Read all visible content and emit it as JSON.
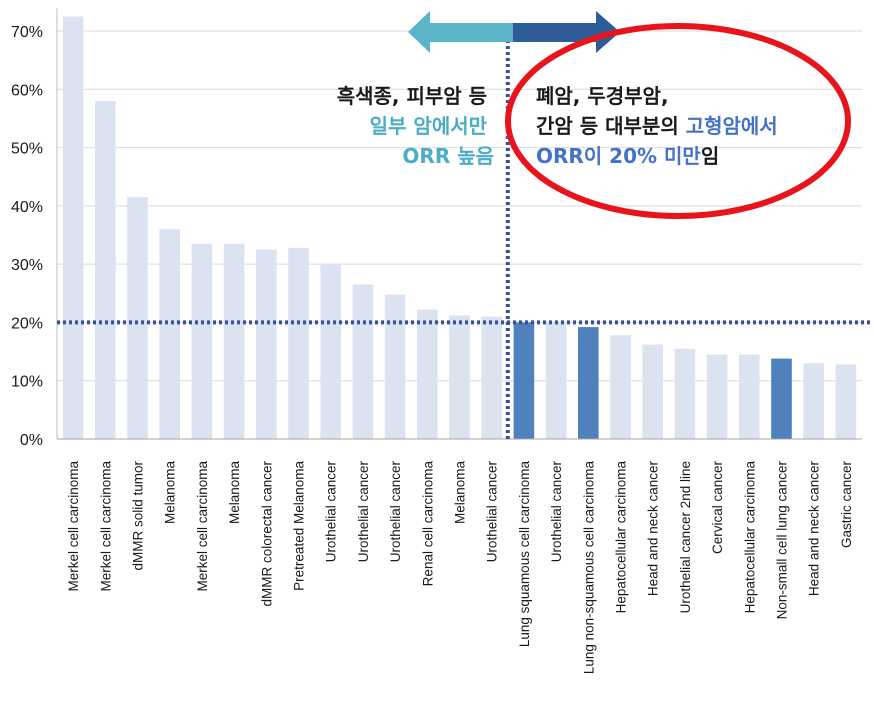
{
  "chart_data": {
    "type": "bar",
    "title": "",
    "xlabel": "",
    "ylabel": "",
    "ylim": [
      0,
      70
    ],
    "y_ticks": [
      "0%",
      "10%",
      "20%",
      "30%",
      "40%",
      "50%",
      "60%",
      "70%"
    ],
    "grid": true,
    "categories": [
      "Merkel cell carcinoma",
      "Merkel cell carcinoma",
      "dMMR solid tumor",
      "Melanoma",
      "Merkel cell carcinoma",
      "Melanoma",
      "dMMR colorectal cancer",
      "Pretreated Melanoma",
      "Urothelial cancer",
      "Urothelial cancer",
      "Urothelial cancer",
      "Renal cell carcinoma",
      "Melanoma",
      "Urothelial cancer",
      "Lung squamous cell carcinoma",
      "Urothelial cancer",
      "Lung non-squamous cell carcinoma",
      "Hepatocellular carcinoma",
      "Head and neck cancer",
      "Urothelial cancer 2nd line",
      "Cervical cancer",
      "Hepatocellular carcinoma",
      "Non-small cell lung cancer",
      "Head and neck cancer",
      "Gastric cancer"
    ],
    "values": [
      72.5,
      58,
      41.5,
      36,
      33.5,
      33.5,
      32.5,
      32.8,
      30,
      26.5,
      24.8,
      22.2,
      21.2,
      21,
      20,
      20,
      19.2,
      17.8,
      16.2,
      15.5,
      14.5,
      14.5,
      13.8,
      13,
      12.8
    ],
    "highlighted": [
      false,
      false,
      false,
      false,
      false,
      false,
      false,
      false,
      false,
      false,
      false,
      false,
      false,
      false,
      true,
      false,
      true,
      false,
      false,
      false,
      false,
      false,
      true,
      false,
      false
    ],
    "threshold": 20,
    "divider_after_index": 13,
    "colors": {
      "bar": "#dce3f0",
      "highlight": "#4f81bd",
      "threshold_line": "#3a4fa0",
      "arrow_left": "#5bb5c9",
      "arrow_right": "#2e5c99",
      "ellipse": "#e8141c",
      "text_dark": "#1a1a1a",
      "text_teal": "#4bacc6",
      "text_blue": "#4472c4"
    }
  },
  "annotations": {
    "left": {
      "line1": "흑색종, 피부암 등",
      "line2": "일부 암에서만",
      "line3": "ORR 높음"
    },
    "right": {
      "line1": "폐암, 두경부암,",
      "line2_dark": "간암 등 대부분의 ",
      "line2_blue": "고형암에서",
      "line3_blue": "ORR이 20% 미만",
      "line3_dark": "임"
    }
  }
}
